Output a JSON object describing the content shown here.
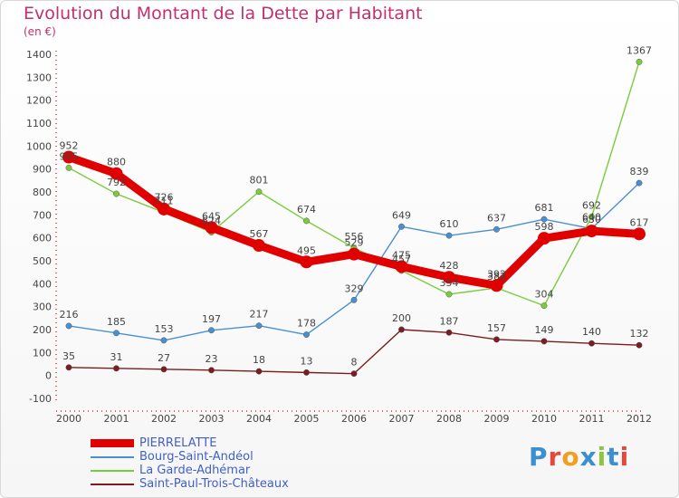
{
  "title": "Evolution du Montant de la Dette par Habitant",
  "unit": "(en €)",
  "logo": {
    "letters": [
      "P",
      "r",
      "o",
      "x",
      "i",
      "t",
      "i"
    ],
    "colors": [
      "#3a8fd0",
      "#e8483c",
      "#f0a020",
      "#3a8fd0",
      "#8cc63f",
      "#3a8fd0",
      "#e8483c"
    ]
  },
  "chart_data": {
    "type": "line",
    "title": "Evolution du Montant de la Dette par Habitant",
    "ylabel": "(en €)",
    "xlabel": "",
    "ylim": [
      -100,
      1400
    ],
    "yticks": [
      -100,
      0,
      100,
      200,
      300,
      400,
      500,
      600,
      700,
      800,
      900,
      1000,
      1100,
      1200,
      1300,
      1400
    ],
    "categories": [
      "2000",
      "2001",
      "2002",
      "2003",
      "2004",
      "2005",
      "2006",
      "2007",
      "2008",
      "2009",
      "2010",
      "2011",
      "2012"
    ],
    "grid": false,
    "legend_position": "bottom-left",
    "series": [
      {
        "name": "PIERRELATTE",
        "color": "#e00000",
        "values": [
          952,
          880,
          726,
          645,
          567,
          495,
          529,
          475,
          428,
          392,
          598,
          630,
          617
        ]
      },
      {
        "name": "Bourg-Saint-Andéol",
        "color": "#4a90d0",
        "values": [
          216,
          185,
          153,
          197,
          217,
          178,
          329,
          649,
          610,
          637,
          681,
          640,
          839
        ]
      },
      {
        "name": "La Garde-Adhémar",
        "color": "#7acc3c",
        "values": [
          905,
          792,
          711,
          624,
          801,
          674,
          556,
          457,
          354,
          382,
          304,
          692,
          1367
        ]
      },
      {
        "name": "Saint-Paul-Trois-Châteaux",
        "color": "#7a1c20",
        "values": [
          35,
          31,
          27,
          23,
          18,
          13,
          8,
          200,
          187,
          157,
          149,
          140,
          132
        ]
      }
    ]
  }
}
